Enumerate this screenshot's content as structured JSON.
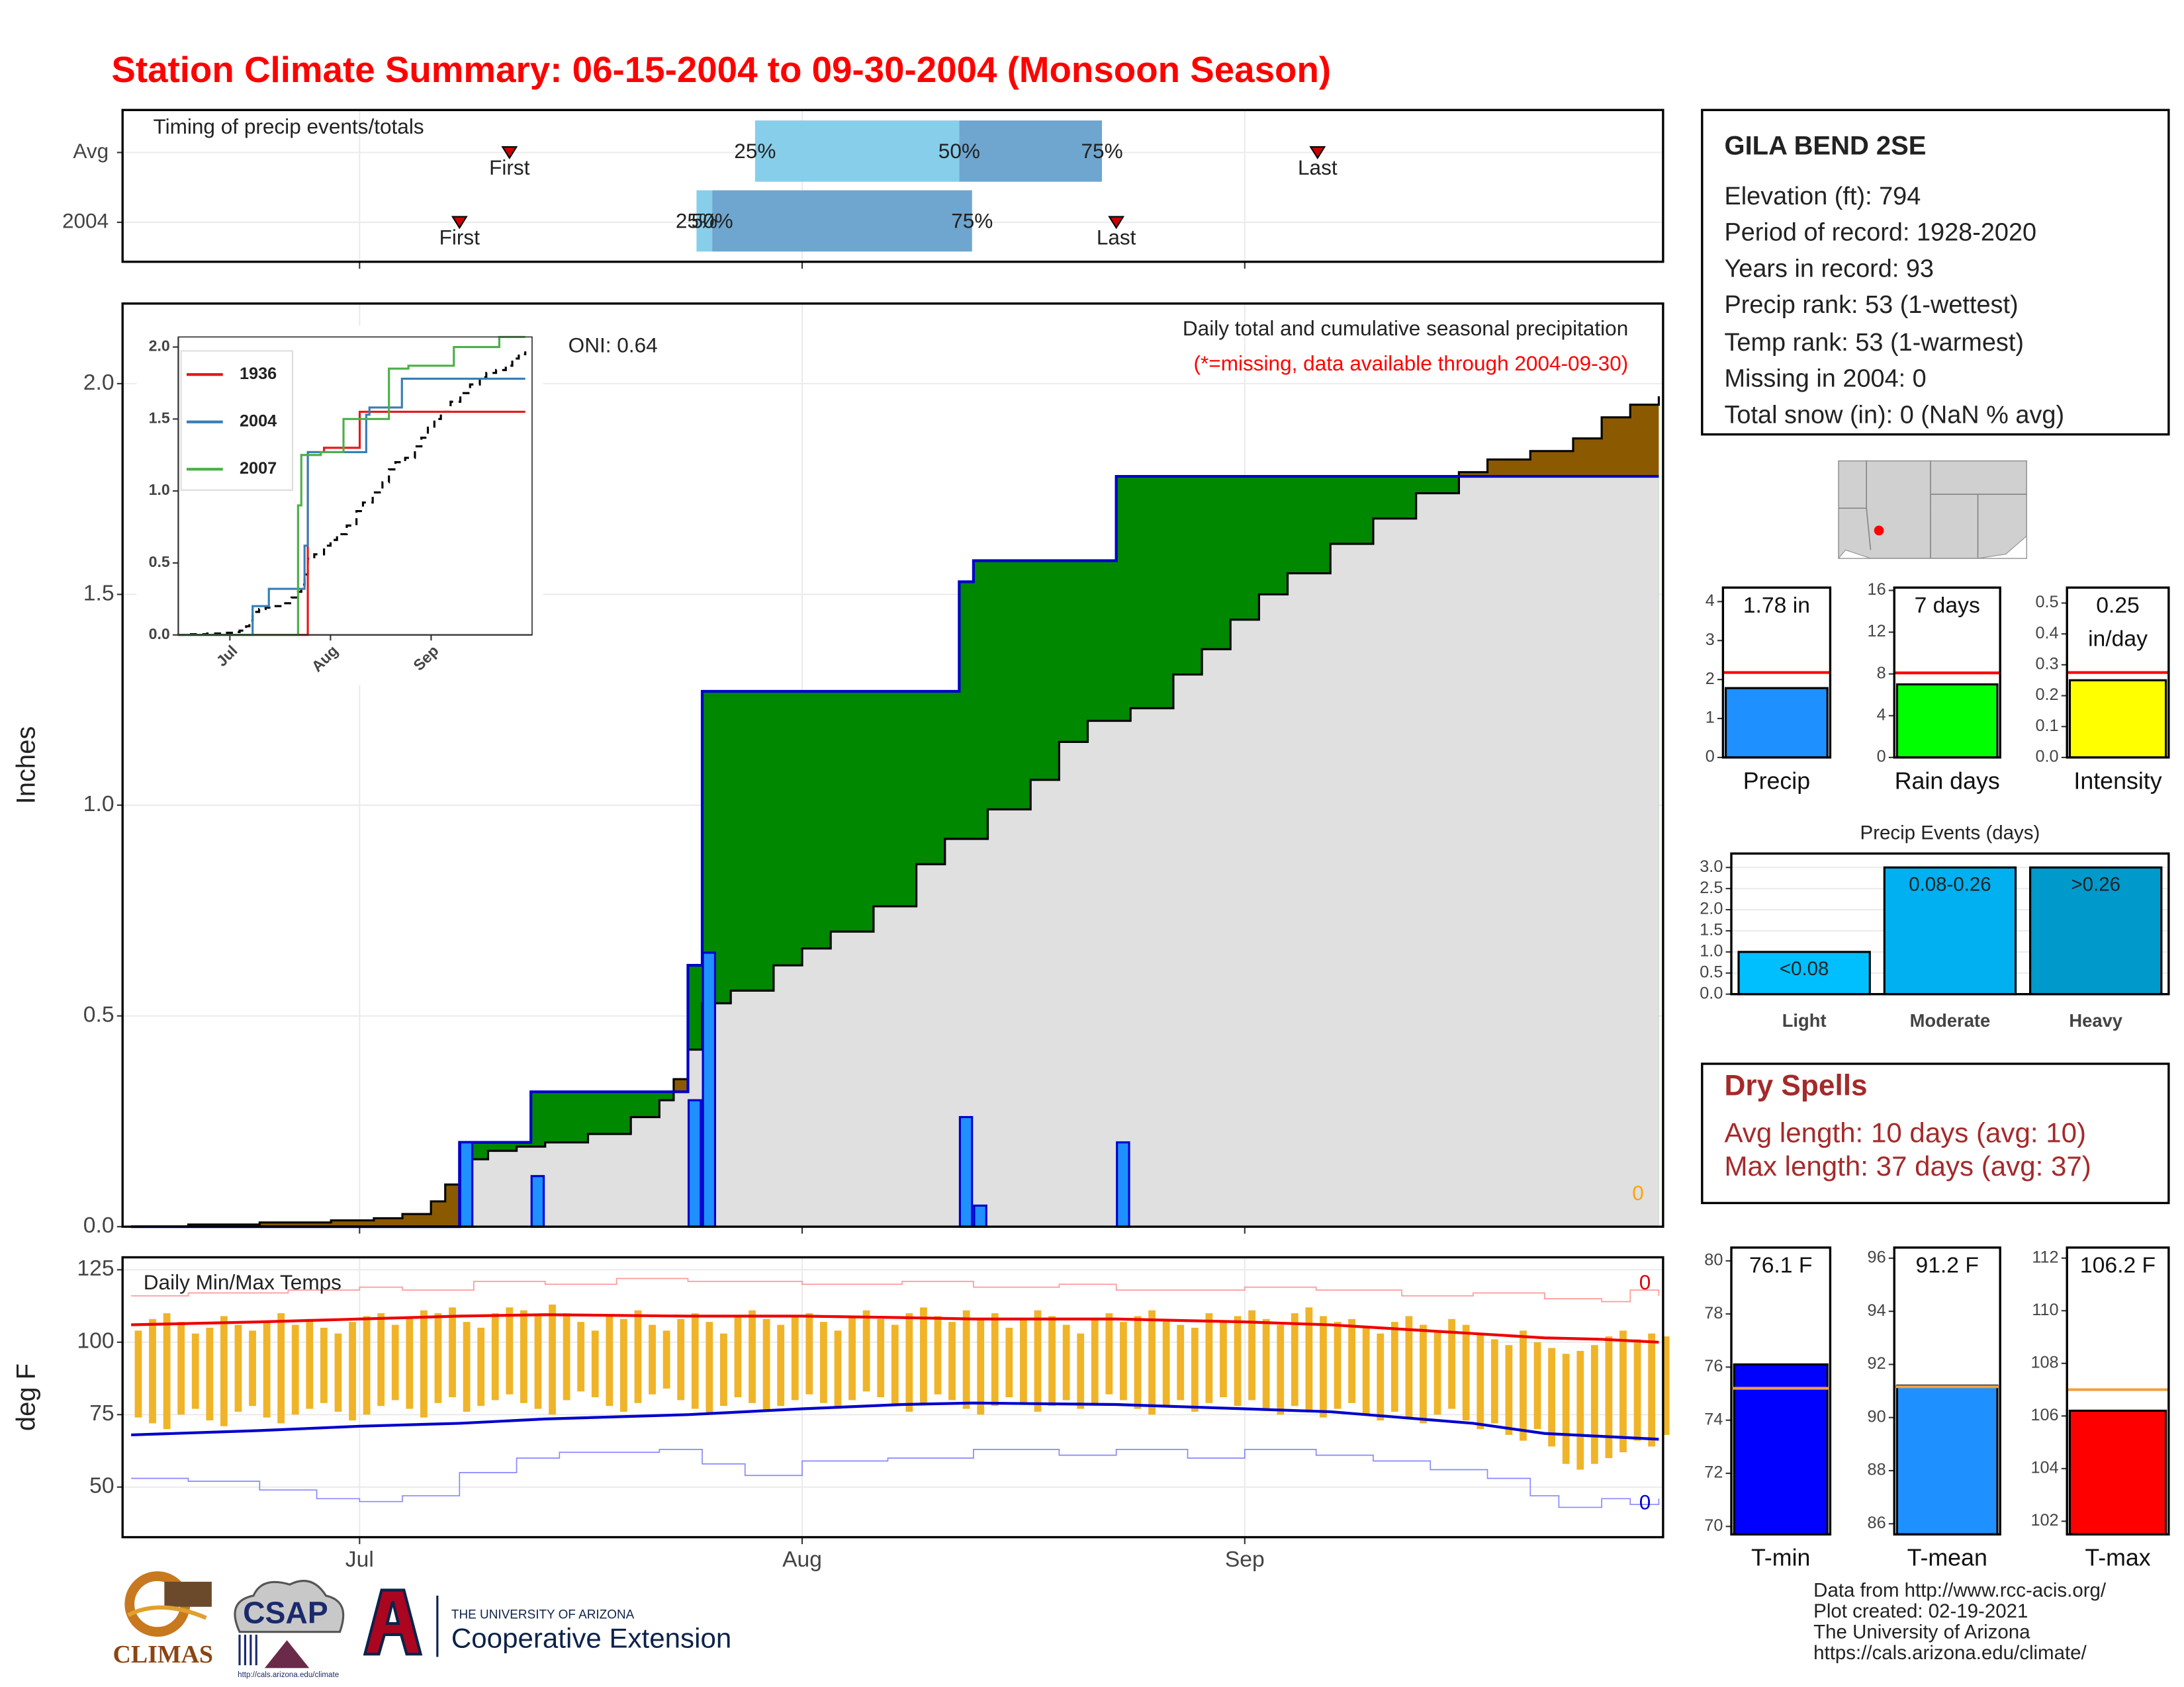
{
  "title": "Station Climate Summary: 06-15-2004 to 09-30-2004 (Monsoon Season)",
  "station": {
    "name": "GILA BEND 2SE",
    "lines": [
      "Elevation (ft): 794",
      "Period of record: 1928-2020",
      "Years in record: 93",
      "Precip rank: 53 (1-wettest)",
      "Temp rank: 53 (1-warmest)",
      "Missing in 2004: 0",
      "Total snow (in): 0 (NaN % avg)"
    ]
  },
  "dry_spells": {
    "title": "Dry Spells",
    "lines": [
      "Avg length: 10 days (avg: 10)",
      "Max length: 37 days (avg: 37)"
    ]
  },
  "footer": [
    "Data from http://www.rcc-acis.org/",
    "Plot created: 02-19-2021",
    "The University of Arizona",
    "https://cals.arizona.edu/climate/"
  ],
  "logos": {
    "climas": "CLIMAS",
    "csap": "CSAP",
    "csap_url": "http://cals.arizona.edu/climate",
    "university": "THE UNIVERSITY OF ARIZONA",
    "extension": "Cooperative Extension"
  },
  "chart_data": [
    {
      "type": "timing",
      "title": "Timing of precip events/totals",
      "categories": [
        "Avg",
        "2004"
      ],
      "series": [
        {
          "name": "25%",
          "values": [
            44.7,
            40.6
          ]
        },
        {
          "name": "50%",
          "color": "#87ceeb",
          "values": [
            59,
            41.7
          ]
        },
        {
          "name": "75%",
          "color": "#6ea6cf",
          "values": [
            69,
            59.9
          ]
        }
      ],
      "markers": [
        {
          "name": "First",
          "values": [
            27.5,
            24
          ]
        },
        {
          "name": "Last",
          "values": [
            84.1,
            70
          ]
        }
      ],
      "marker_color": "#cc0000"
    },
    {
      "type": "area",
      "title": "Daily total and cumulative seasonal precipitation",
      "subtitle": "(*=missing, data available through 2004-09-30)",
      "annotation": "ONI: 0.64",
      "missing": 0,
      "ylabel": "Inches",
      "xlim": [
        0.4,
        108.3
      ],
      "xticks": [
        {
          "value": 17,
          "label": "Jul"
        },
        {
          "value": 48,
          "label": "Aug"
        },
        {
          "value": 79,
          "label": "Sep"
        }
      ],
      "ylim": [
        0,
        2.19
      ],
      "yticks": [
        {
          "value": 0,
          "label": "0.0"
        },
        0.5,
        {
          "value": 1,
          "label": "1.0"
        },
        1.5,
        {
          "value": 2,
          "label": "2.0"
        }
      ],
      "grid": true,
      "series": [
        {
          "name": "2004",
          "color": "#1e90ff",
          "line_color": "#0000cc",
          "x": [
            24,
            29,
            40,
            41,
            59,
            60,
            70
          ],
          "values": [
            0.2,
            0.12,
            0.3,
            0.65,
            0.26,
            0.05,
            0.2
          ]
        }
      ],
      "average": {
        "color": "#000000",
        "x": [
          1,
          5,
          10,
          15,
          18,
          20,
          22,
          23,
          24,
          26,
          28,
          30,
          33,
          36,
          38,
          39,
          40,
          41,
          43,
          46,
          48,
          50,
          53,
          56,
          58,
          61,
          64,
          66,
          68,
          71,
          74,
          76,
          78,
          80,
          82,
          85,
          88,
          91,
          94,
          96,
          99,
          102,
          104,
          106,
          108
        ],
        "values": [
          0,
          0.005,
          0.01,
          0.015,
          0.02,
          0.03,
          0.06,
          0.1,
          0.16,
          0.18,
          0.19,
          0.2,
          0.22,
          0.26,
          0.3,
          0.35,
          0.42,
          0.53,
          0.56,
          0.62,
          0.66,
          0.7,
          0.76,
          0.86,
          0.92,
          0.99,
          1.06,
          1.15,
          1.2,
          1.23,
          1.31,
          1.37,
          1.44,
          1.5,
          1.55,
          1.62,
          1.68,
          1.74,
          1.79,
          1.82,
          1.84,
          1.87,
          1.92,
          1.95,
          1.97
        ]
      },
      "colors": {
        "above": "#008800",
        "below": "#8b5a00",
        "base": "#e0e0e0",
        "missing": "#ffa500"
      }
    },
    {
      "type": "line",
      "xlim": [
        1.1,
        110.1
      ],
      "xticks": [
        {
          "value": 17,
          "label": "Jul"
        },
        {
          "value": 48,
          "label": "Aug"
        },
        {
          "value": 79,
          "label": "Sep"
        }
      ],
      "ylim": [
        0,
        2.07
      ],
      "yticks": [
        {
          "value": 0,
          "label": "0.0"
        },
        0.5,
        {
          "value": 1,
          "label": "1.0"
        },
        1.5,
        {
          "value": 2,
          "label": "2.0"
        }
      ],
      "series": [
        {
          "name": "1936",
          "color": "#e41a1c",
          "x": [
            1,
            41,
            46,
            57,
            108
          ],
          "values": [
            0,
            1.27,
            1.3,
            1.55,
            1.55
          ]
        },
        {
          "name": "2004",
          "color": "#377eb8",
          "x": [
            1,
            24,
            29,
            40,
            41,
            59,
            60,
            70,
            108
          ],
          "values": [
            0,
            0.2,
            0.32,
            0.62,
            1.27,
            1.53,
            1.58,
            1.78,
            1.78
          ]
        },
        {
          "name": "2007",
          "color": "#4daf4a",
          "x": [
            1,
            38,
            39,
            45,
            52,
            66,
            72,
            86,
            100,
            108
          ],
          "values": [
            0,
            0.9,
            1.25,
            1.27,
            1.5,
            1.85,
            1.87,
            2.0,
            2.07,
            2.07
          ]
        }
      ]
    },
    {
      "type": "bar",
      "categories": [
        "Precip"
      ],
      "values": [
        1.78
      ],
      "value_labels": [
        "1.78 in"
      ],
      "color": "#1e90ff",
      "average": 2.18,
      "average_color": "#ff0000",
      "ylim": [
        0,
        4.36
      ],
      "yticks": [
        0,
        1,
        2,
        3,
        4
      ]
    },
    {
      "type": "bar",
      "categories": [
        "Rain days"
      ],
      "values": [
        7
      ],
      "value_labels": [
        "7 days"
      ],
      "color": "#00ff00",
      "average": 8.1,
      "average_color": "#ff0000",
      "ylim": [
        0,
        16.27
      ],
      "yticks": [
        0,
        4,
        8,
        12,
        16
      ]
    },
    {
      "type": "bar",
      "categories": [
        "Intensity"
      ],
      "values": [
        0.25
      ],
      "value_labels": [
        "0.25 in/day"
      ],
      "color": "#ffff00",
      "average": 0.275,
      "average_color": "#ff0000",
      "ylim": [
        0,
        0.55
      ],
      "yticks": [
        {
          "value": 0,
          "label": "0.0"
        },
        0.1,
        0.2,
        0.3,
        0.4,
        0.5
      ]
    },
    {
      "type": "bar",
      "title": "Precip Events (days)",
      "categories": [
        "Light",
        "Moderate",
        "Heavy"
      ],
      "values": [
        1,
        3,
        3
      ],
      "labels": [
        "<0.08",
        "0.08-0.26",
        ">0.26"
      ],
      "colors": [
        "#00bfff",
        "#00b0f0",
        "#0099cc"
      ],
      "grid": true,
      "ylim": [
        0,
        3.33
      ],
      "yticks": [
        {
          "value": 0,
          "label": "0.0"
        },
        0.5,
        {
          "value": 1,
          "label": "1.0"
        },
        1.5,
        {
          "value": 2,
          "label": "2.0"
        },
        2.5,
        {
          "value": 3,
          "label": "3.0"
        }
      ]
    },
    {
      "type": "range",
      "title": "Daily Min/Max Temps",
      "ylabel": "deg F",
      "ylim": [
        32.7,
        129.3
      ],
      "yticks": [
        50,
        75,
        100,
        125
      ],
      "grid": true,
      "bar_color": "#f0b429",
      "record_high_count": 0,
      "record_low_count": 0,
      "record_high_color": "#dd0000",
      "record_low_color": "#0000cc",
      "x": [
        1,
        2,
        3,
        4,
        5,
        6,
        7,
        8,
        9,
        10,
        11,
        12,
        13,
        14,
        15,
        16,
        17,
        18,
        19,
        20,
        21,
        22,
        23,
        24,
        25,
        26,
        27,
        28,
        29,
        30,
        31,
        32,
        33,
        34,
        35,
        36,
        37,
        38,
        39,
        40,
        41,
        42,
        43,
        44,
        45,
        46,
        47,
        48,
        49,
        50,
        51,
        52,
        53,
        54,
        55,
        56,
        57,
        58,
        59,
        60,
        61,
        62,
        63,
        64,
        65,
        66,
        67,
        68,
        69,
        70,
        71,
        72,
        73,
        74,
        75,
        76,
        77,
        78,
        79,
        80,
        81,
        82,
        83,
        84,
        85,
        86,
        87,
        88,
        89,
        90,
        91,
        92,
        93,
        94,
        95,
        96,
        97,
        98,
        99,
        100,
        101,
        102,
        103,
        104,
        105,
        106,
        107,
        108
      ],
      "tmax": [
        104,
        108,
        110,
        107,
        103,
        105,
        109,
        106,
        104,
        107,
        110,
        106,
        108,
        105,
        103,
        107,
        109,
        110,
        106,
        108,
        111,
        110,
        112,
        107,
        105,
        110,
        112,
        111,
        109,
        113,
        110,
        107,
        104,
        109,
        108,
        111,
        106,
        104,
        108,
        110,
        107,
        103,
        109,
        111,
        108,
        106,
        109,
        110,
        107,
        104,
        109,
        111,
        108,
        106,
        110,
        112,
        109,
        107,
        111,
        108,
        110,
        105,
        108,
        111,
        109,
        106,
        103,
        108,
        110,
        107,
        109,
        111,
        108,
        106,
        105,
        110,
        107,
        109,
        111,
        108,
        106,
        110,
        112,
        109,
        107,
        108,
        105,
        103,
        107,
        109,
        106,
        104,
        108,
        106,
        103,
        101,
        99,
        104,
        100,
        98,
        96,
        97,
        99,
        102,
        104,
        101,
        103,
        102
      ],
      "tmin": [
        74,
        72,
        70,
        75,
        77,
        73,
        71,
        76,
        78,
        74,
        72,
        75,
        77,
        79,
        76,
        73,
        75,
        78,
        80,
        77,
        74,
        79,
        81,
        76,
        78,
        80,
        82,
        79,
        77,
        75,
        80,
        83,
        81,
        78,
        76,
        79,
        82,
        84,
        80,
        77,
        75,
        78,
        81,
        79,
        76,
        78,
        80,
        82,
        79,
        77,
        80,
        83,
        81,
        78,
        76,
        79,
        82,
        80,
        77,
        75,
        78,
        81,
        79,
        76,
        78,
        80,
        77,
        79,
        82,
        80,
        77,
        75,
        78,
        80,
        76,
        79,
        81,
        78,
        80,
        77,
        75,
        78,
        76,
        74,
        77,
        79,
        75,
        73,
        76,
        74,
        72,
        75,
        77,
        73,
        70,
        72,
        68,
        66,
        70,
        64,
        58,
        56,
        58,
        60,
        62,
        66,
        64,
        68
      ],
      "lines": [
        {
          "color": "#ff9999",
          "width": 0.8,
          "step": true,
          "x": [
            1,
            5,
            12,
            17,
            20,
            25,
            30,
            35,
            40,
            48,
            55,
            60,
            66,
            70,
            79,
            84,
            90,
            95,
            100,
            104,
            106,
            108
          ],
          "values": [
            116,
            117,
            118,
            119,
            118,
            121,
            120,
            122,
            121,
            120,
            121,
            119,
            120,
            118,
            119,
            118,
            116,
            117,
            115,
            114,
            118,
            116
          ]
        },
        {
          "color": "#8888ff",
          "width": 0.8,
          "step": true,
          "x": [
            1,
            5,
            10,
            14,
            17,
            20,
            24,
            28,
            31,
            38,
            41,
            44,
            48,
            54,
            60,
            66,
            70,
            75,
            79,
            84,
            88,
            92,
            96,
            99,
            101,
            104,
            106,
            108
          ],
          "values": [
            53,
            52,
            49,
            46,
            45,
            47,
            55,
            60,
            62,
            63,
            58,
            54,
            59,
            60,
            63,
            61,
            63,
            60,
            63,
            61,
            59,
            56,
            53,
            47,
            43,
            46,
            44,
            46
          ]
        },
        {
          "color": "#ee0000",
          "width": 2,
          "x": [
            1,
            10,
            17,
            24,
            30,
            40,
            48,
            55,
            60,
            70,
            79,
            85,
            90,
            95,
            100,
            104,
            108
          ],
          "values": [
            106,
            107,
            108,
            109,
            109.5,
            109,
            109,
            108.5,
            108,
            108,
            107,
            106,
            104.5,
            103,
            101.5,
            101,
            100
          ]
        },
        {
          "color": "#0000cc",
          "width": 2,
          "x": [
            1,
            10,
            17,
            24,
            30,
            40,
            48,
            55,
            60,
            70,
            79,
            85,
            90,
            95,
            100,
            104,
            108
          ],
          "values": [
            68,
            69.5,
            71,
            72,
            73.5,
            75,
            77,
            78.5,
            79,
            78.5,
            77,
            76,
            74,
            72,
            68.5,
            67.5,
            66.5
          ]
        }
      ]
    },
    {
      "type": "bar",
      "categories": [
        "T-min"
      ],
      "values": [
        76.1
      ],
      "value_labels": [
        "76.1 F"
      ],
      "color": "#0000ff",
      "average": 75.2,
      "average_color": "#f0a040",
      "ylim": [
        69.7,
        80.5
      ],
      "yticks": [
        70,
        72,
        74,
        76,
        78,
        80
      ]
    },
    {
      "type": "bar",
      "categories": [
        "T-mean"
      ],
      "values": [
        91.2
      ],
      "value_labels": [
        "91.2 F"
      ],
      "color": "#1e90ff",
      "average": 91.16,
      "average_color": "#f0a040",
      "ylim": [
        85.6,
        96.4
      ],
      "yticks": [
        86,
        88,
        90,
        92,
        94,
        96
      ]
    },
    {
      "type": "bar",
      "categories": [
        "T-max"
      ],
      "values": [
        106.2
      ],
      "value_labels": [
        "106.2 F"
      ],
      "color": "#ff0000",
      "average": 107.0,
      "average_color": "#f0a040",
      "ylim": [
        101.5,
        112.4
      ],
      "yticks": [
        102,
        104,
        106,
        108,
        110,
        112
      ]
    }
  ]
}
